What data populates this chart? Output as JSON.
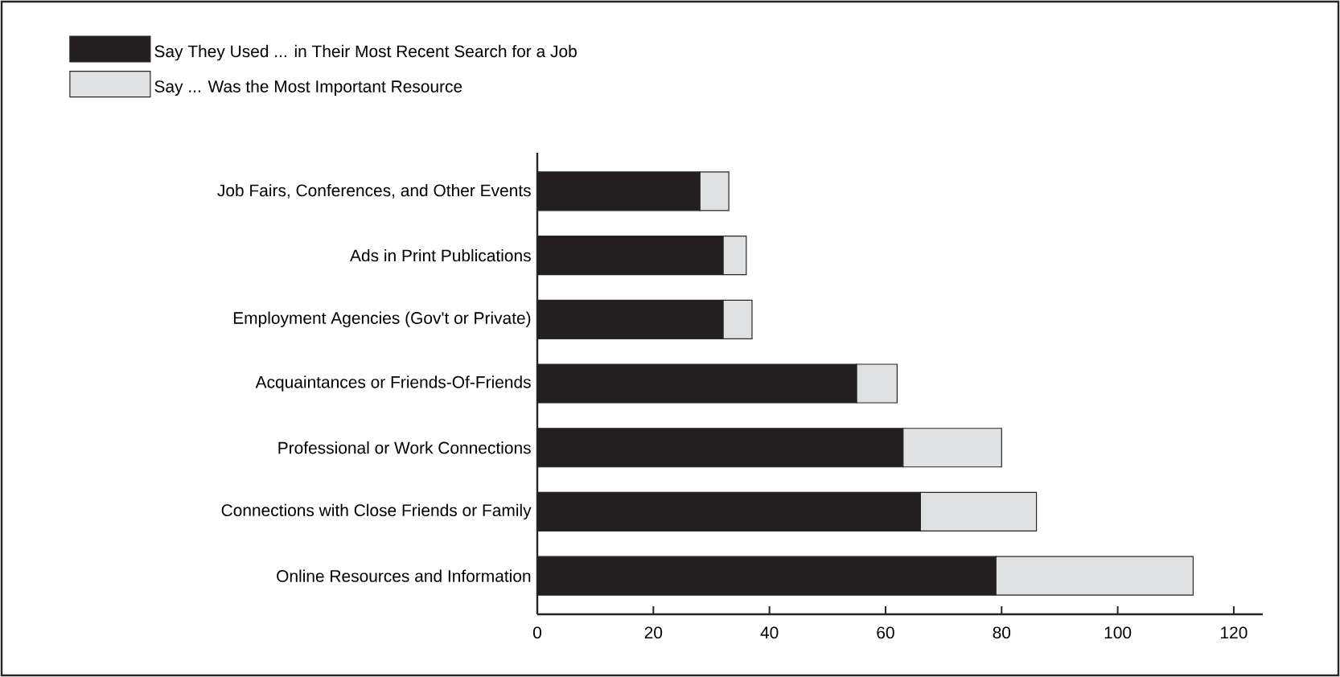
{
  "chart_data": {
    "type": "bar",
    "orientation": "horizontal",
    "stacked": true,
    "categories": [
      "Job Fairs, Conferences, and Other Events",
      "Ads in Print Publications",
      "Employment Agencies (Gov't or Private)",
      "Acquaintances or Friends-Of-Friends",
      "Professional or Work Connections",
      "Connections with Close Friends or Family",
      "Online Resources and Information"
    ],
    "series": [
      {
        "name": "Say They Used ... in Their Most Recent Search for a Job",
        "color": "#231f20",
        "values": [
          28,
          32,
          32,
          55,
          63,
          66,
          79
        ]
      },
      {
        "name": "Say ... Was the Most Important Resource",
        "color": "#e0e1e3",
        "values": [
          5,
          4,
          5,
          7,
          17,
          20,
          34
        ]
      }
    ],
    "xlim": [
      0,
      125
    ],
    "xticks": [
      0,
      20,
      40,
      60,
      80,
      100,
      120
    ],
    "legend": "top left"
  }
}
